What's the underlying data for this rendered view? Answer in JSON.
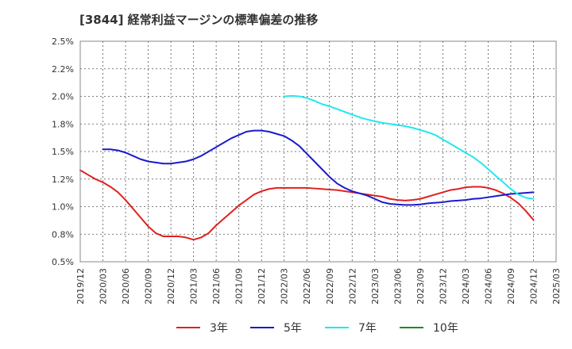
{
  "chart_data": {
    "type": "line",
    "title": "[3844]  経常利益マージンの標準偏差の推移",
    "xlabel": "",
    "ylabel": "",
    "ylim": [
      0.5,
      2.5
    ],
    "yticks": [
      "0.5%",
      "0.8%",
      "1.0%",
      "1.2%",
      "1.5%",
      "1.8%",
      "2.0%",
      "2.2%",
      "2.5%"
    ],
    "x_start": "2019-12",
    "x_end": "2025-03",
    "xticks": [
      "2019/12",
      "2020/03",
      "2020/06",
      "2020/09",
      "2020/12",
      "2021/03",
      "2021/06",
      "2021/09",
      "2021/12",
      "2022/03",
      "2022/06",
      "2022/09",
      "2022/12",
      "2023/03",
      "2023/06",
      "2023/09",
      "2023/12",
      "2024/03",
      "2024/06",
      "2024/09",
      "2024/12",
      "2025/03"
    ],
    "grid": true,
    "legend_position": "bottom",
    "series": [
      {
        "name": "3年",
        "color": "#e02020",
        "data": [
          [
            "2019-12",
            1.33
          ],
          [
            "2020-01",
            1.29
          ],
          [
            "2020-02",
            1.25
          ],
          [
            "2020-03",
            1.22
          ],
          [
            "2020-04",
            1.18
          ],
          [
            "2020-05",
            1.13
          ],
          [
            "2020-06",
            1.06
          ],
          [
            "2020-07",
            0.98
          ],
          [
            "2020-08",
            0.9
          ],
          [
            "2020-09",
            0.82
          ],
          [
            "2020-10",
            0.76
          ],
          [
            "2020-11",
            0.73
          ],
          [
            "2020-12",
            0.73
          ],
          [
            "2021-01",
            0.73
          ],
          [
            "2021-02",
            0.72
          ],
          [
            "2021-03",
            0.7
          ],
          [
            "2021-04",
            0.72
          ],
          [
            "2021-05",
            0.76
          ],
          [
            "2021-06",
            0.83
          ],
          [
            "2021-07",
            0.89
          ],
          [
            "2021-08",
            0.95
          ],
          [
            "2021-09",
            1.01
          ],
          [
            "2021-10",
            1.06
          ],
          [
            "2021-11",
            1.11
          ],
          [
            "2021-12",
            1.14
          ],
          [
            "2022-01",
            1.16
          ],
          [
            "2022-02",
            1.17
          ],
          [
            "2022-03",
            1.17
          ],
          [
            "2022-04",
            1.17
          ],
          [
            "2022-05",
            1.17
          ],
          [
            "2022-06",
            1.17
          ],
          [
            "2022-07",
            1.165
          ],
          [
            "2022-08",
            1.16
          ],
          [
            "2022-09",
            1.155
          ],
          [
            "2022-10",
            1.15
          ],
          [
            "2022-11",
            1.14
          ],
          [
            "2022-12",
            1.13
          ],
          [
            "2023-01",
            1.12
          ],
          [
            "2023-02",
            1.11
          ],
          [
            "2023-03",
            1.1
          ],
          [
            "2023-04",
            1.09
          ],
          [
            "2023-05",
            1.07
          ],
          [
            "2023-06",
            1.06
          ],
          [
            "2023-07",
            1.055
          ],
          [
            "2023-08",
            1.06
          ],
          [
            "2023-09",
            1.07
          ],
          [
            "2023-10",
            1.09
          ],
          [
            "2023-11",
            1.11
          ],
          [
            "2023-12",
            1.13
          ],
          [
            "2024-01",
            1.15
          ],
          [
            "2024-02",
            1.16
          ],
          [
            "2024-03",
            1.175
          ],
          [
            "2024-04",
            1.18
          ],
          [
            "2024-05",
            1.18
          ],
          [
            "2024-06",
            1.17
          ],
          [
            "2024-07",
            1.15
          ],
          [
            "2024-08",
            1.12
          ],
          [
            "2024-09",
            1.08
          ],
          [
            "2024-10",
            1.03
          ],
          [
            "2024-11",
            0.96
          ],
          [
            "2024-12",
            0.88
          ]
        ]
      },
      {
        "name": "5年",
        "color": "#1a1acc",
        "data": [
          [
            "2020-03",
            1.52
          ],
          [
            "2020-04",
            1.52
          ],
          [
            "2020-05",
            1.51
          ],
          [
            "2020-06",
            1.49
          ],
          [
            "2020-07",
            1.46
          ],
          [
            "2020-08",
            1.43
          ],
          [
            "2020-09",
            1.41
          ],
          [
            "2020-10",
            1.4
          ],
          [
            "2020-11",
            1.39
          ],
          [
            "2020-12",
            1.39
          ],
          [
            "2021-01",
            1.4
          ],
          [
            "2021-02",
            1.41
          ],
          [
            "2021-03",
            1.43
          ],
          [
            "2021-04",
            1.46
          ],
          [
            "2021-05",
            1.5
          ],
          [
            "2021-06",
            1.54
          ],
          [
            "2021-07",
            1.58
          ],
          [
            "2021-08",
            1.62
          ],
          [
            "2021-09",
            1.65
          ],
          [
            "2021-10",
            1.68
          ],
          [
            "2021-11",
            1.69
          ],
          [
            "2021-12",
            1.69
          ],
          [
            "2022-01",
            1.68
          ],
          [
            "2022-02",
            1.66
          ],
          [
            "2022-03",
            1.64
          ],
          [
            "2022-04",
            1.6
          ],
          [
            "2022-05",
            1.55
          ],
          [
            "2022-06",
            1.48
          ],
          [
            "2022-07",
            1.41
          ],
          [
            "2022-08",
            1.34
          ],
          [
            "2022-09",
            1.27
          ],
          [
            "2022-10",
            1.21
          ],
          [
            "2022-11",
            1.17
          ],
          [
            "2022-12",
            1.14
          ],
          [
            "2023-01",
            1.12
          ],
          [
            "2023-02",
            1.1
          ],
          [
            "2023-03",
            1.07
          ],
          [
            "2023-04",
            1.04
          ],
          [
            "2023-05",
            1.025
          ],
          [
            "2023-06",
            1.02
          ],
          [
            "2023-07",
            1.015
          ],
          [
            "2023-08",
            1.015
          ],
          [
            "2023-09",
            1.02
          ],
          [
            "2023-10",
            1.03
          ],
          [
            "2023-11",
            1.035
          ],
          [
            "2023-12",
            1.04
          ],
          [
            "2024-01",
            1.05
          ],
          [
            "2024-02",
            1.055
          ],
          [
            "2024-03",
            1.06
          ],
          [
            "2024-04",
            1.07
          ],
          [
            "2024-05",
            1.075
          ],
          [
            "2024-06",
            1.085
          ],
          [
            "2024-07",
            1.095
          ],
          [
            "2024-08",
            1.105
          ],
          [
            "2024-09",
            1.115
          ],
          [
            "2024-10",
            1.12
          ],
          [
            "2024-11",
            1.125
          ],
          [
            "2024-12",
            1.13
          ]
        ]
      },
      {
        "name": "7年",
        "color": "#22e8ee",
        "data": [
          [
            "2022-03",
            2.0
          ],
          [
            "2022-04",
            2.005
          ],
          [
            "2022-05",
            2.0
          ],
          [
            "2022-06",
            1.985
          ],
          [
            "2022-07",
            1.96
          ],
          [
            "2022-08",
            1.93
          ],
          [
            "2022-09",
            1.91
          ],
          [
            "2022-10",
            1.885
          ],
          [
            "2022-11",
            1.86
          ],
          [
            "2022-12",
            1.835
          ],
          [
            "2023-01",
            1.81
          ],
          [
            "2023-02",
            1.79
          ],
          [
            "2023-03",
            1.775
          ],
          [
            "2023-04",
            1.76
          ],
          [
            "2023-05",
            1.75
          ],
          [
            "2023-06",
            1.74
          ],
          [
            "2023-07",
            1.73
          ],
          [
            "2023-08",
            1.715
          ],
          [
            "2023-09",
            1.695
          ],
          [
            "2023-10",
            1.675
          ],
          [
            "2023-11",
            1.65
          ],
          [
            "2023-12",
            1.61
          ],
          [
            "2024-01",
            1.57
          ],
          [
            "2024-02",
            1.53
          ],
          [
            "2024-03",
            1.49
          ],
          [
            "2024-04",
            1.45
          ],
          [
            "2024-05",
            1.4
          ],
          [
            "2024-06",
            1.34
          ],
          [
            "2024-07",
            1.28
          ],
          [
            "2024-08",
            1.22
          ],
          [
            "2024-09",
            1.16
          ],
          [
            "2024-10",
            1.11
          ],
          [
            "2024-11",
            1.08
          ],
          [
            "2024-12",
            1.07
          ]
        ]
      },
      {
        "name": "10年",
        "color": "#1e8c1e",
        "data": []
      }
    ]
  }
}
